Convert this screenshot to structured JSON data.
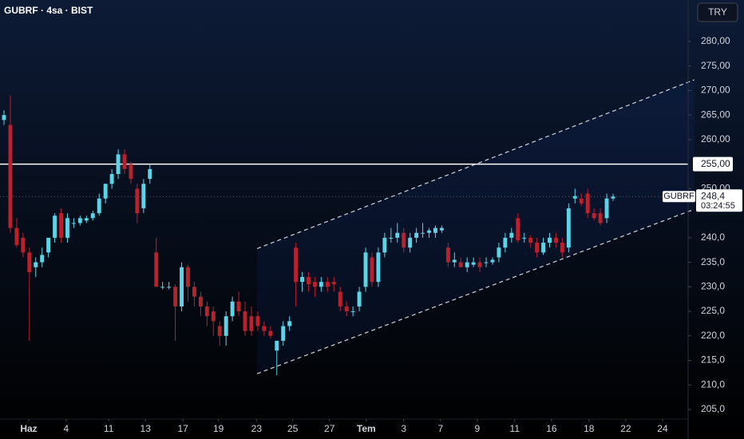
{
  "chart_data": {
    "type": "candlestick",
    "title": "GUBRF · 4sa · BIST",
    "currency": "TRY",
    "symbol": "GUBRF",
    "up_color": "#5fd3e6",
    "down_color": "#b8222f",
    "xlim": [
      -0.63,
      107.83
    ],
    "ylim": [
      203.05,
      288.46
    ],
    "xticks": [
      {
        "value": 3.9,
        "label": "Haz"
      },
      {
        "value": 9.8,
        "label": "4"
      },
      {
        "value": 16.5,
        "label": "11"
      },
      {
        "value": 22.3,
        "label": "13"
      },
      {
        "value": 28.2,
        "label": "17"
      },
      {
        "value": 33.8,
        "label": "19"
      },
      {
        "value": 39.8,
        "label": "23"
      },
      {
        "value": 45.5,
        "label": "25"
      },
      {
        "value": 51.3,
        "label": "27"
      },
      {
        "value": 57.1,
        "label": "Tem"
      },
      {
        "value": 63.0,
        "label": "3"
      },
      {
        "value": 68.8,
        "label": "7"
      },
      {
        "value": 74.6,
        "label": "9"
      },
      {
        "value": 80.5,
        "label": "11"
      },
      {
        "value": 86.3,
        "label": "16"
      },
      {
        "value": 92.2,
        "label": "18"
      },
      {
        "value": 98.0,
        "label": "22"
      },
      {
        "value": 103.8,
        "label": "24"
      }
    ],
    "yticks": [
      {
        "value": 280,
        "label": "280,00"
      },
      {
        "value": 275,
        "label": "275,00"
      },
      {
        "value": 270,
        "label": "270,00"
      },
      {
        "value": 265,
        "label": "265,00"
      },
      {
        "value": 260,
        "label": "260,00"
      },
      {
        "value": 250,
        "label": "250,00"
      },
      {
        "value": 240,
        "label": "240,0"
      },
      {
        "value": 235,
        "label": "235,0"
      },
      {
        "value": 230,
        "label": "230,0"
      },
      {
        "value": 225,
        "label": "225,0"
      },
      {
        "value": 220,
        "label": "220,0"
      },
      {
        "value": 215,
        "label": "215,0"
      },
      {
        "value": 210,
        "label": "210,0"
      },
      {
        "value": 205,
        "label": "205,0"
      }
    ],
    "hline": {
      "value": 255,
      "label": "255,00",
      "color": "#ffffff"
    },
    "last_price": {
      "value": 248.4,
      "label": "248,4",
      "countdown": "03:24:55"
    },
    "channel": {
      "upper": [
        [
          39.9,
          237.8
        ],
        [
          108.8,
          272.2
        ]
      ],
      "lower": [
        [
          39.9,
          212.3
        ],
        [
          108.8,
          245.8
        ]
      ]
    },
    "ohlc": [
      [
        264,
        266,
        263,
        265
      ],
      [
        263,
        269,
        241,
        242
      ],
      [
        242,
        244,
        238,
        238.5
      ],
      [
        240,
        241,
        236,
        237
      ],
      [
        237,
        238,
        219,
        233
      ],
      [
        234,
        236,
        232,
        235
      ],
      [
        235,
        238,
        234,
        236.5
      ],
      [
        237,
        240,
        236,
        240
      ],
      [
        240,
        245,
        239,
        244.5
      ],
      [
        245,
        246,
        239,
        240
      ],
      [
        240,
        245,
        239,
        244
      ],
      [
        243,
        244,
        242,
        243
      ],
      [
        243,
        244.5,
        242.5,
        244
      ],
      [
        243.5,
        244.5,
        243,
        244
      ],
      [
        244,
        245.5,
        243.5,
        245
      ],
      [
        245,
        249,
        244.5,
        248
      ],
      [
        248,
        251,
        247,
        251
      ],
      [
        251,
        254,
        250,
        253
      ],
      [
        253,
        258,
        252,
        257
      ],
      [
        257,
        258,
        253,
        254
      ],
      [
        255,
        255.5,
        251,
        252
      ],
      [
        250,
        251,
        243,
        245
      ],
      [
        246,
        252,
        245,
        251
      ],
      [
        252,
        255,
        251,
        254
      ],
      [
        237,
        240,
        230,
        230
      ],
      [
        230,
        231,
        229.5,
        230
      ],
      [
        230,
        231,
        229.5,
        230
      ],
      [
        230,
        230.5,
        219,
        226
      ],
      [
        226,
        235,
        225,
        234
      ],
      [
        234,
        234.5,
        227,
        230
      ],
      [
        230,
        231,
        226,
        228
      ],
      [
        228,
        229,
        224,
        226
      ],
      [
        226,
        227,
        222,
        224
      ],
      [
        225,
        226,
        220,
        223
      ],
      [
        222,
        223,
        218,
        220
      ],
      [
        220,
        225,
        218,
        224
      ],
      [
        224,
        228,
        223,
        227
      ],
      [
        227,
        229,
        224,
        225
      ],
      [
        225,
        227,
        220,
        221
      ],
      [
        224,
        226,
        220,
        221
      ],
      [
        224,
        225,
        221,
        222
      ],
      [
        222,
        223,
        220,
        221
      ],
      [
        221,
        222,
        219.5,
        220
      ],
      [
        217,
        219,
        212,
        219
      ],
      [
        219,
        223,
        218,
        222
      ],
      [
        222,
        224,
        221,
        223
      ],
      [
        238,
        239,
        226,
        231
      ],
      [
        231,
        233,
        229,
        232
      ],
      [
        232,
        233,
        229,
        230.5
      ],
      [
        231,
        232,
        228,
        230
      ],
      [
        230,
        232,
        229,
        231
      ],
      [
        231,
        232,
        229,
        230
      ],
      [
        231,
        232,
        229,
        230.5
      ],
      [
        229,
        230,
        225,
        226
      ],
      [
        226,
        227,
        224,
        225
      ],
      [
        225,
        226,
        224,
        225
      ],
      [
        226,
        230,
        225,
        229
      ],
      [
        230,
        238,
        229,
        237
      ],
      [
        236,
        237,
        230,
        231
      ],
      [
        231,
        238,
        230,
        237
      ],
      [
        237,
        241,
        236,
        240
      ],
      [
        240,
        242,
        239,
        240
      ],
      [
        240,
        243,
        239,
        241
      ],
      [
        241,
        242,
        237,
        238
      ],
      [
        238,
        241,
        237,
        240
      ],
      [
        240,
        242,
        239,
        241
      ],
      [
        241,
        243,
        240,
        241
      ],
      [
        241,
        242,
        240,
        241.5
      ],
      [
        241,
        242.5,
        240,
        242
      ],
      [
        241.5,
        242.5,
        241,
        242
      ],
      [
        238,
        239,
        234,
        235
      ],
      [
        235,
        237,
        234,
        235.5
      ],
      [
        235,
        236,
        234,
        234
      ],
      [
        234,
        236,
        233,
        235
      ],
      [
        234.5,
        236,
        234,
        235
      ],
      [
        235,
        236,
        233,
        234
      ],
      [
        235,
        236,
        234,
        235
      ],
      [
        235,
        236,
        234.5,
        235.5
      ],
      [
        236,
        239,
        235,
        238
      ],
      [
        238,
        241,
        237,
        240
      ],
      [
        240,
        242,
        239,
        241
      ],
      [
        244,
        245,
        239,
        239.5
      ],
      [
        240,
        241,
        239,
        240
      ],
      [
        240,
        240.5,
        238,
        239
      ],
      [
        239,
        240,
        236,
        237
      ],
      [
        237,
        240,
        236.5,
        239
      ],
      [
        239,
        241,
        238,
        240
      ],
      [
        240,
        241,
        238,
        239
      ],
      [
        239,
        240,
        236,
        237
      ],
      [
        238,
        247,
        237,
        246
      ],
      [
        248,
        250,
        247,
        248.5
      ],
      [
        248,
        249,
        246.5,
        247
      ],
      [
        249,
        250,
        244,
        245
      ],
      [
        245,
        246,
        243.5,
        244
      ],
      [
        245,
        246,
        242.5,
        243
      ],
      [
        244,
        249,
        243,
        248
      ],
      [
        248,
        249,
        247.5,
        248.4
      ]
    ]
  }
}
